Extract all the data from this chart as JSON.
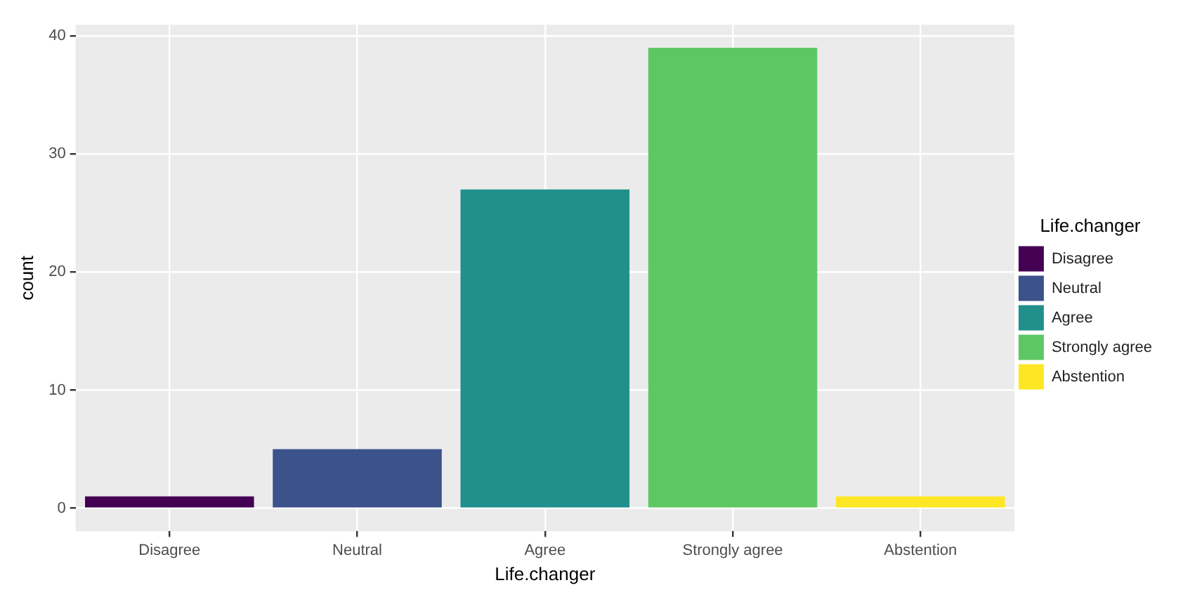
{
  "chart_data": {
    "type": "bar",
    "xlabel": "Life.changer",
    "ylabel": "count",
    "legend_title": "Life.changer",
    "categories": [
      "Disagree",
      "Neutral",
      "Agree",
      "Strongly agree",
      "Abstention"
    ],
    "series": [
      {
        "name": "Disagree",
        "color": "#440154",
        "values": [
          1,
          null,
          null,
          null,
          null
        ]
      },
      {
        "name": "Neutral",
        "color": "#3b528b",
        "values": [
          null,
          5,
          null,
          null,
          null
        ]
      },
      {
        "name": "Agree",
        "color": "#21908c",
        "values": [
          null,
          null,
          27,
          null,
          null
        ]
      },
      {
        "name": "Strongly agree",
        "color": "#5dc863",
        "values": [
          null,
          null,
          null,
          39,
          null
        ]
      },
      {
        "name": "Abstention",
        "color": "#fde725",
        "values": [
          null,
          null,
          null,
          null,
          1
        ]
      }
    ],
    "ylim": [
      -1.95,
      40.95
    ],
    "yticks": [
      0,
      10,
      20,
      30,
      40
    ],
    "grid": true,
    "legend": "right"
  }
}
